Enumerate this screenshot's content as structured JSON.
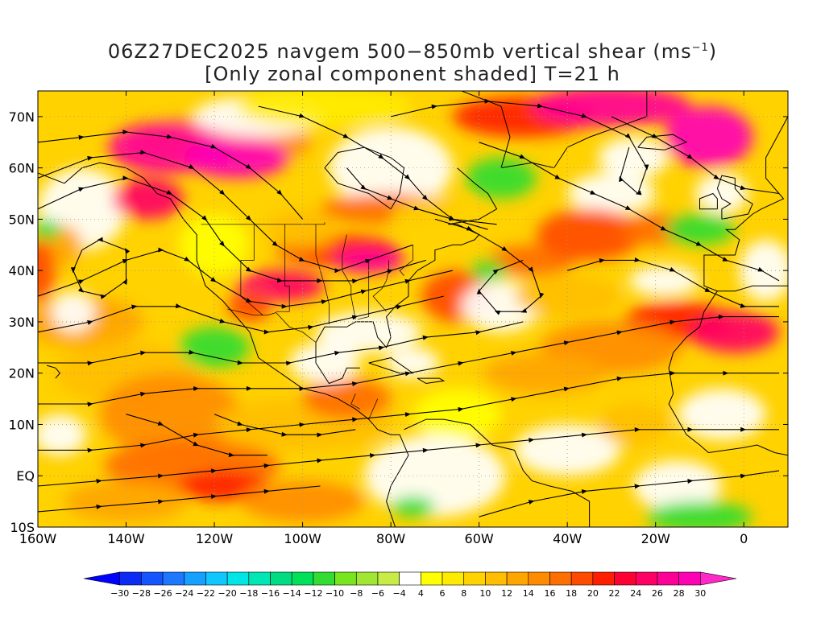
{
  "title": {
    "line1_main": "06Z27DEC2025 navgem 500−850mb vertical shear (ms",
    "line1_sup": "−1",
    "line1_end": ")",
    "line2": "[Only zonal component shaded] T=21 h"
  },
  "map": {
    "lat_labels": [
      "70N",
      "60N",
      "50N",
      "40N",
      "30N",
      "20N",
      "10N",
      "EQ",
      "10S"
    ],
    "lon_labels": [
      "160W",
      "140W",
      "120W",
      "100W",
      "80W",
      "60W",
      "40W",
      "20W",
      "0"
    ],
    "lat_values": [
      70,
      60,
      50,
      40,
      30,
      20,
      10,
      0,
      -10
    ],
    "lon_values": [
      -160,
      -140,
      -120,
      -100,
      -80,
      -60,
      -40,
      -20,
      0
    ],
    "lat_range": [
      -10,
      75
    ],
    "lon_range": [
      -160,
      10
    ],
    "grid": true,
    "projection": "cylindrical equidistant"
  },
  "colorbar": {
    "labels": [
      "−30",
      "−28",
      "−26",
      "−24",
      "−22",
      "−20",
      "−18",
      "−16",
      "−14",
      "−12",
      "−10",
      "−8",
      "−6",
      "−4",
      "4",
      "6",
      "8",
      "10",
      "12",
      "14",
      "16",
      "18",
      "20",
      "22",
      "24",
      "26",
      "28",
      "30"
    ],
    "colors": [
      "#0000ff",
      "#0a2cf4",
      "#1455ff",
      "#1e78ff",
      "#16a0ff",
      "#10c8ff",
      "#00e6e6",
      "#00e6b4",
      "#00dc82",
      "#00e15a",
      "#32dc32",
      "#78e61e",
      "#a0e632",
      "#c8eb46",
      "#ffffff",
      "#ffff00",
      "#ffeb00",
      "#ffd200",
      "#ffbe00",
      "#ffa500",
      "#ff8c00",
      "#ff6e00",
      "#ff4b00",
      "#ff1e00",
      "#ff0032",
      "#ff0064",
      "#ff0096",
      "#ff00b4",
      "#ff28c8"
    ]
  }
}
